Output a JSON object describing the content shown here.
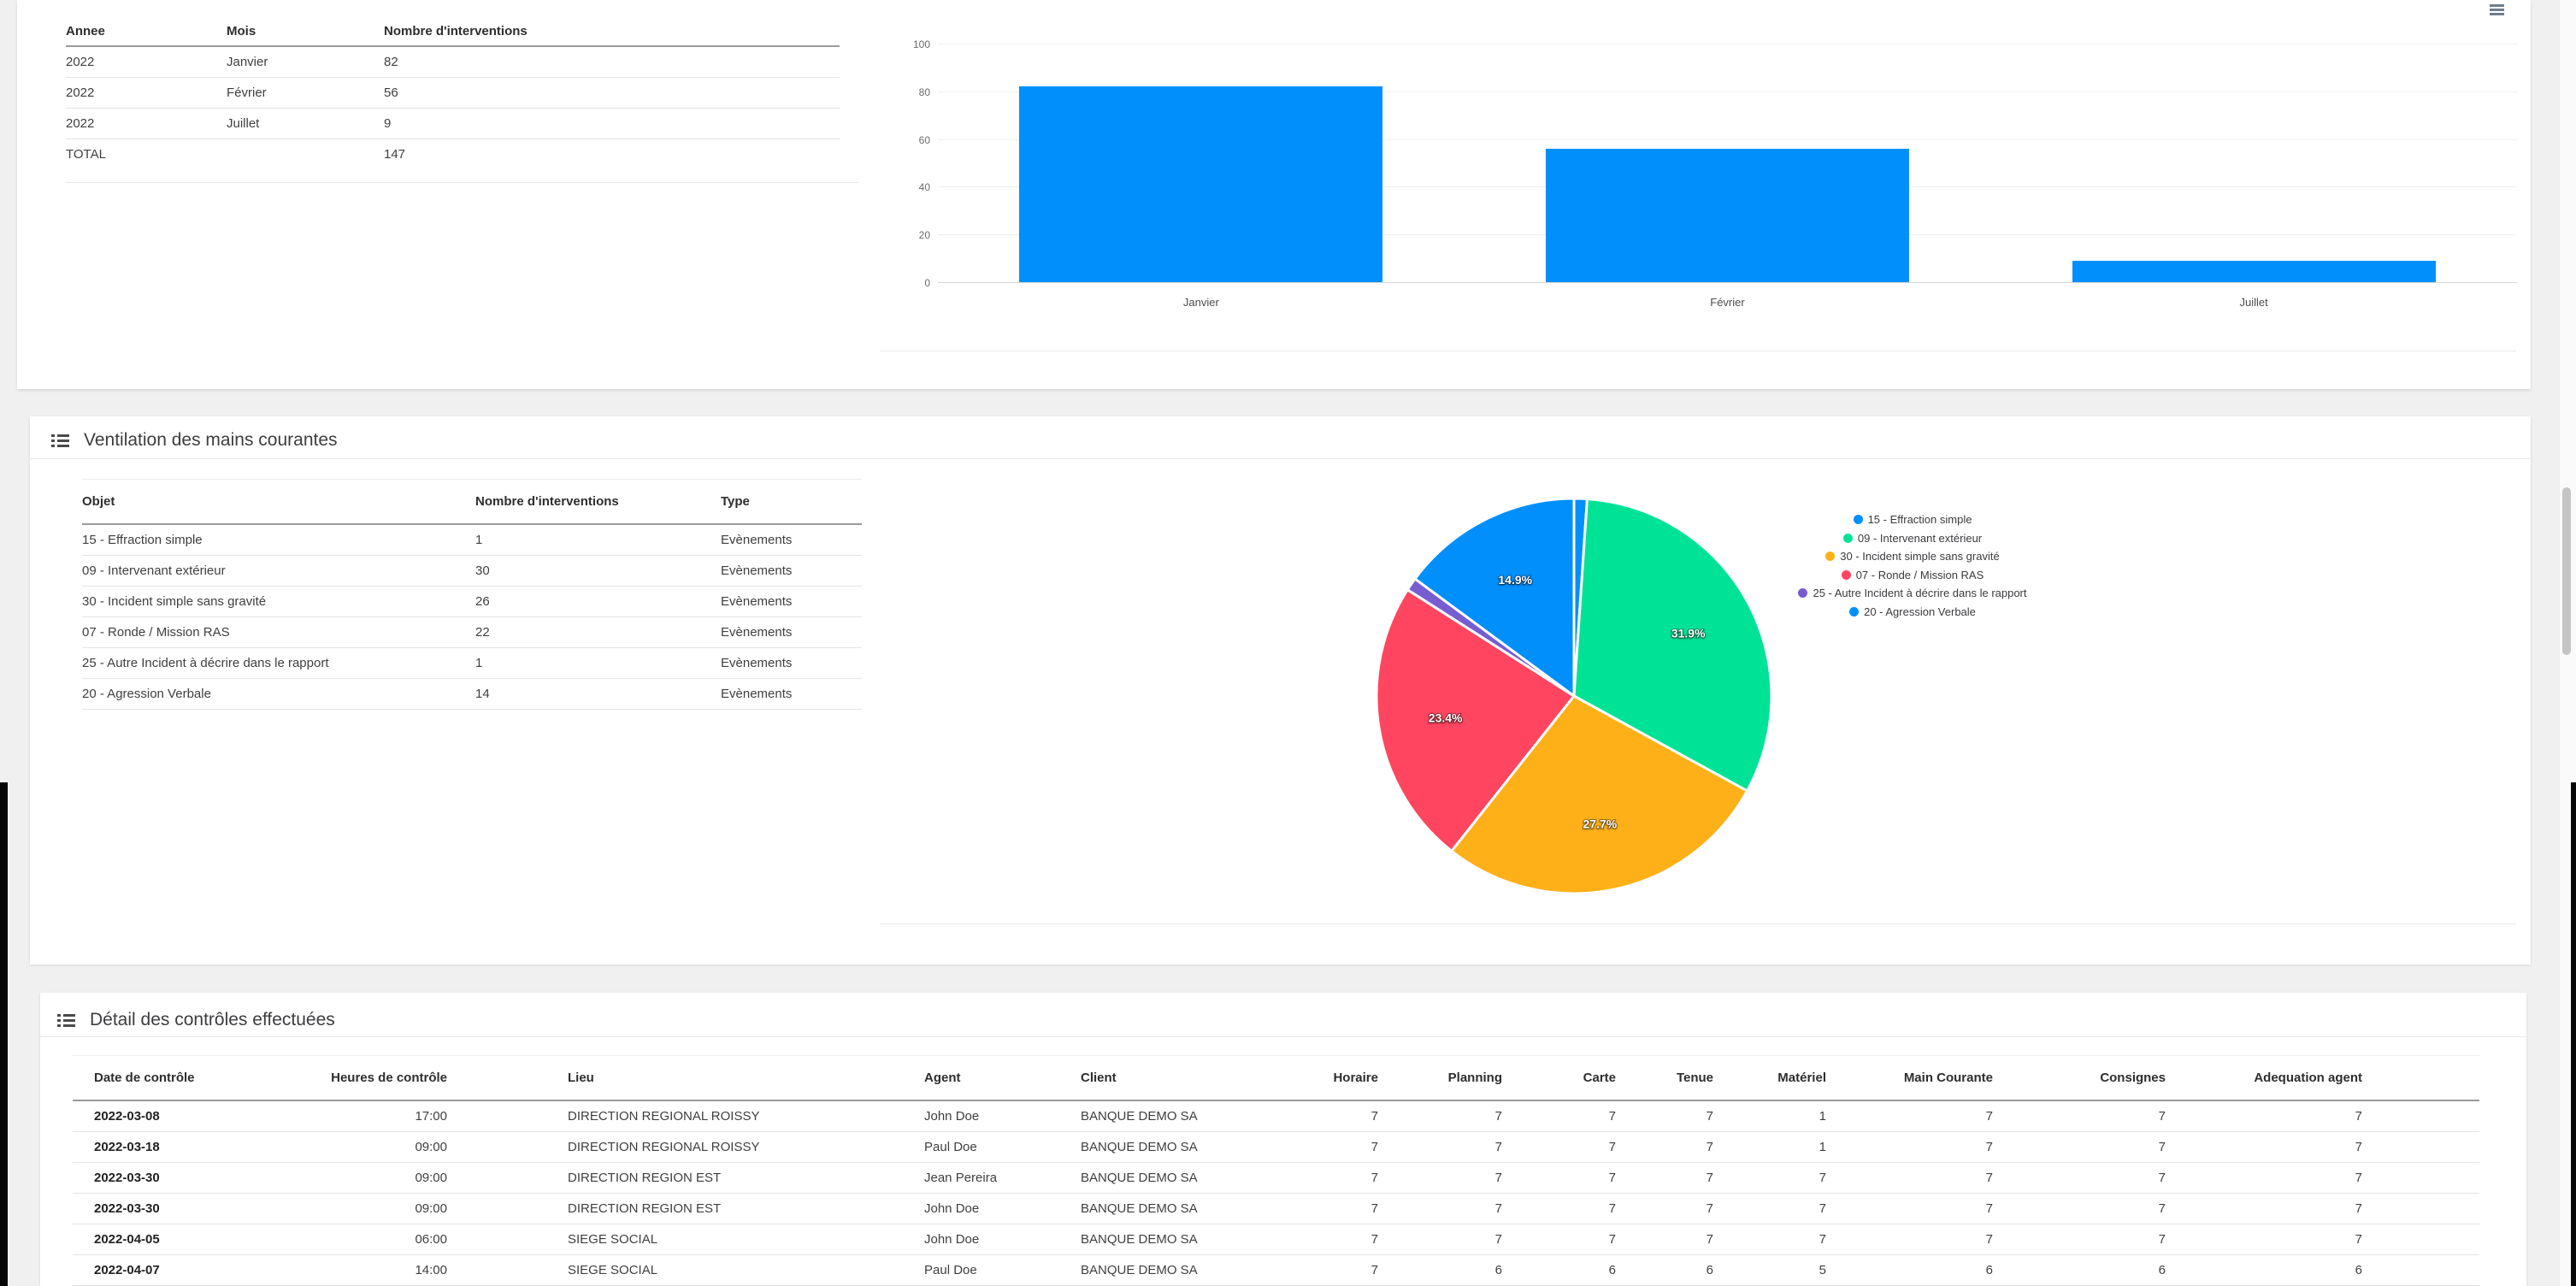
{
  "interventions_summary": {
    "columns": [
      "Annee",
      "Mois",
      "Nombre d'interventions"
    ],
    "rows": [
      [
        "2022",
        "Janvier",
        "82"
      ],
      [
        "2022",
        "Février",
        "56"
      ],
      [
        "2022",
        "Juillet",
        "9"
      ]
    ],
    "total_label": "TOTAL",
    "total_value": "147"
  },
  "ventilation": {
    "title": "Ventilation des mains courantes",
    "table": {
      "columns": [
        "Objet",
        "Nombre d'interventions",
        "Type"
      ],
      "rows": [
        [
          "15 - Effraction simple",
          "1",
          "Evènements"
        ],
        [
          "09 - Intervenant extérieur",
          "30",
          "Evènements"
        ],
        [
          "30 - Incident simple sans gravité",
          "26",
          "Evènements"
        ],
        [
          "07 - Ronde / Mission RAS",
          "22",
          "Evènements"
        ],
        [
          "25 - Autre Incident à décrire dans le rapport",
          "1",
          "Evènements"
        ],
        [
          "20 - Agression Verbale",
          "14",
          "Evènements"
        ]
      ]
    }
  },
  "controls": {
    "title": "Détail des contrôles effectuées",
    "columns": [
      "Date de contrôle",
      "Heures de contrôle",
      "Lieu",
      "Agent",
      "Client",
      "Horaire",
      "Planning",
      "Carte",
      "Tenue",
      "Matériel",
      "Main Courante",
      "Consignes",
      "Adequation agent"
    ],
    "rows": [
      [
        "2022-03-08",
        "17:00",
        "DIRECTION REGIONAL ROISSY",
        "John Doe",
        "BANQUE DEMO SA",
        "7",
        "7",
        "7",
        "7",
        "1",
        "7",
        "7",
        "7"
      ],
      [
        "2022-03-18",
        "09:00",
        "DIRECTION REGIONAL ROISSY",
        "Paul Doe",
        "BANQUE DEMO SA",
        "7",
        "7",
        "7",
        "7",
        "1",
        "7",
        "7",
        "7"
      ],
      [
        "2022-03-30",
        "09:00",
        "DIRECTION REGION EST",
        "Jean Pereira",
        "BANQUE DEMO SA",
        "7",
        "7",
        "7",
        "7",
        "7",
        "7",
        "7",
        "7"
      ],
      [
        "2022-03-30",
        "09:00",
        "DIRECTION REGION EST",
        "John Doe",
        "BANQUE DEMO SA",
        "7",
        "7",
        "7",
        "7",
        "7",
        "7",
        "7",
        "7"
      ],
      [
        "2022-04-05",
        "06:00",
        "SIEGE SOCIAL",
        "John Doe",
        "BANQUE DEMO SA",
        "7",
        "7",
        "7",
        "7",
        "7",
        "7",
        "7",
        "7"
      ],
      [
        "2022-04-07",
        "14:00",
        "SIEGE SOCIAL",
        "Paul Doe",
        "BANQUE DEMO SA",
        "7",
        "6",
        "6",
        "6",
        "5",
        "6",
        "6",
        "6"
      ]
    ]
  },
  "chart_data": [
    {
      "type": "bar",
      "title": "",
      "categories": [
        "Janvier",
        "Février",
        "Juillet"
      ],
      "values": [
        82,
        56,
        9
      ],
      "xlabel": "",
      "ylabel": "",
      "ylim": [
        0,
        100
      ],
      "yticks": [
        0,
        20,
        40,
        60,
        80,
        100
      ],
      "grid": true,
      "legend": false,
      "bar_color": "#008FFB"
    },
    {
      "type": "pie",
      "labels": [
        "15 - Effraction simple",
        "09 - Intervenant extérieur",
        "30 - Incident simple sans gravité",
        "07 - Ronde / Mission RAS",
        "25 - Autre Incident à décrire dans le rapport",
        "20 - Agression Verbale"
      ],
      "values": [
        1,
        30,
        26,
        22,
        1,
        14
      ],
      "percent_labels": [
        "1.1%",
        "31.9%",
        "27.7%",
        "23.4%",
        "1.1%",
        "14.9%"
      ],
      "colors": [
        "#008FFB",
        "#00E396",
        "#FEB019",
        "#FF4560",
        "#775DD0",
        "#008FFB"
      ],
      "legend_position": "right",
      "label_min_pct": 5
    }
  ],
  "icons": {
    "section_icon": "list-icon",
    "chart_menu_icon": "hamburger-menu-icon"
  }
}
